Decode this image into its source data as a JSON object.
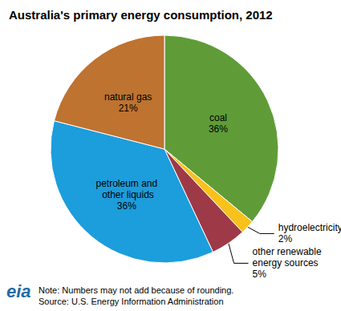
{
  "chart_data": {
    "type": "pie",
    "title": "Australia's primary energy consumption, 2012",
    "categories": [
      "coal",
      "hydroelectricity",
      "other renewable energy sources",
      "petroleum and other liquids",
      "natural gas"
    ],
    "values": [
      36,
      2,
      5,
      36,
      21
    ],
    "value_labels": [
      "36%",
      "2%",
      "5%",
      "36%",
      "21%"
    ],
    "colors": [
      "#5f9c38",
      "#f9c11b",
      "#9e3a47",
      "#1c9ddc",
      "#be7330"
    ],
    "data_labels": true,
    "annotations": [
      "Note: Numbers may not add because of rounding.",
      "Source: U.S. Energy Information Administration"
    ],
    "logo": "eia"
  }
}
